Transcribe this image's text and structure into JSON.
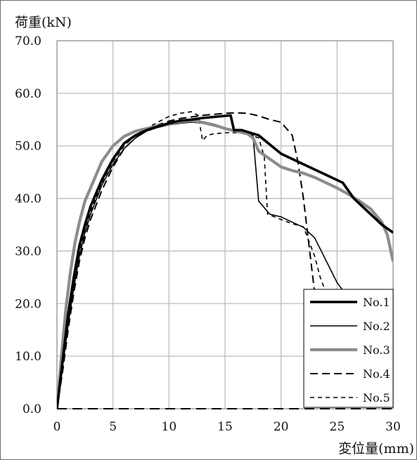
{
  "chart_data": {
    "type": "line",
    "ylabel": "荷重(kN)",
    "xlabel": "変位量(mm)",
    "xlim": [
      0,
      30
    ],
    "ylim": [
      0,
      70
    ],
    "x_ticks": [
      "0",
      "5",
      "10",
      "15",
      "20",
      "25",
      "30"
    ],
    "y_ticks": [
      "0.0",
      "10.0",
      "20.0",
      "30.0",
      "40.0",
      "50.0",
      "60.0",
      "70.0"
    ],
    "grid": true,
    "legend_position": "bottom-right",
    "series": [
      {
        "name": "No.1",
        "color": "#000000",
        "style": "solid-thick",
        "points": [
          [
            0,
            0
          ],
          [
            0.5,
            9
          ],
          [
            1,
            18
          ],
          [
            1.5,
            25
          ],
          [
            2,
            31
          ],
          [
            2.5,
            35
          ],
          [
            3,
            38.5
          ],
          [
            4,
            43.5
          ],
          [
            5,
            47.5
          ],
          [
            6,
            50.5
          ],
          [
            7,
            52
          ],
          [
            8,
            53
          ],
          [
            9,
            53.7
          ],
          [
            10,
            54.3
          ],
          [
            11,
            54.8
          ],
          [
            12,
            55
          ],
          [
            13,
            55.3
          ],
          [
            14,
            55.5
          ],
          [
            15,
            55.7
          ],
          [
            15.5,
            55.8
          ],
          [
            15.8,
            53
          ],
          [
            16.5,
            53
          ],
          [
            18,
            52
          ],
          [
            20,
            48.5
          ],
          [
            22,
            46.5
          ],
          [
            24,
            44.5
          ],
          [
            25.5,
            43
          ],
          [
            26.5,
            40
          ],
          [
            28,
            37
          ],
          [
            29,
            35
          ],
          [
            30,
            33.5
          ]
        ]
      },
      {
        "name": "No.2",
        "color": "#000000",
        "style": "solid-thin",
        "points": [
          [
            0,
            0
          ],
          [
            0.5,
            8
          ],
          [
            1,
            16
          ],
          [
            1.5,
            23
          ],
          [
            2,
            29
          ],
          [
            2.5,
            33.5
          ],
          [
            3,
            37
          ],
          [
            4,
            42.5
          ],
          [
            5,
            46.5
          ],
          [
            6,
            49.5
          ],
          [
            7,
            51.5
          ],
          [
            8,
            52.8
          ],
          [
            9,
            53.5
          ],
          [
            10,
            54
          ],
          [
            11,
            54.3
          ],
          [
            12,
            54.5
          ],
          [
            13,
            54.3
          ],
          [
            14,
            53.8
          ],
          [
            15,
            53.2
          ],
          [
            16,
            52.8
          ],
          [
            17,
            52.3
          ],
          [
            17.5,
            52
          ],
          [
            18,
            39.5
          ],
          [
            19,
            37
          ],
          [
            20,
            36.5
          ],
          [
            21,
            35.5
          ],
          [
            22,
            34.5
          ],
          [
            23,
            32.5
          ],
          [
            25,
            24
          ],
          [
            26.2,
            20.5
          ]
        ]
      },
      {
        "name": "No.3",
        "color": "#8c8c8c",
        "style": "solid-thick",
        "points": [
          [
            0,
            0
          ],
          [
            0.4,
            10
          ],
          [
            0.8,
            19
          ],
          [
            1.2,
            26
          ],
          [
            1.6,
            31.5
          ],
          [
            2,
            35.5
          ],
          [
            2.5,
            39.5
          ],
          [
            3,
            42
          ],
          [
            4,
            47
          ],
          [
            5,
            50
          ],
          [
            6,
            51.8
          ],
          [
            7,
            52.8
          ],
          [
            8,
            53.3
          ],
          [
            9,
            53.8
          ],
          [
            10,
            54.2
          ],
          [
            11,
            54.6
          ],
          [
            12,
            54.8
          ],
          [
            13,
            54.5
          ],
          [
            14,
            54
          ],
          [
            15,
            53.3
          ],
          [
            16,
            52.8
          ],
          [
            17,
            52.3
          ],
          [
            17.5,
            51.5
          ],
          [
            18,
            49
          ],
          [
            19,
            47.5
          ],
          [
            20,
            46
          ],
          [
            21,
            45.3
          ],
          [
            22,
            44.8
          ],
          [
            23,
            44
          ],
          [
            24,
            43
          ],
          [
            25,
            42
          ],
          [
            26,
            40.8
          ],
          [
            27,
            39.5
          ],
          [
            28,
            38
          ],
          [
            29,
            35.5
          ],
          [
            29.5,
            33
          ],
          [
            30,
            28
          ]
        ]
      },
      {
        "name": "No.4",
        "color": "#000000",
        "style": "dashed-long",
        "points": [
          [
            0,
            0
          ],
          [
            0.5,
            7
          ],
          [
            1,
            15
          ],
          [
            1.5,
            22
          ],
          [
            2,
            28
          ],
          [
            2.5,
            32.5
          ],
          [
            3,
            36
          ],
          [
            4,
            41.5
          ],
          [
            5,
            46
          ],
          [
            6,
            49.5
          ],
          [
            7,
            51.5
          ],
          [
            8,
            53
          ],
          [
            9,
            54
          ],
          [
            10,
            54.7
          ],
          [
            11,
            55.2
          ],
          [
            12,
            55.5
          ],
          [
            13,
            55.8
          ],
          [
            14,
            56
          ],
          [
            15,
            56.2
          ],
          [
            16,
            56.3
          ],
          [
            17,
            56.2
          ],
          [
            18,
            55.7
          ],
          [
            19,
            55
          ],
          [
            20,
            54.5
          ],
          [
            21,
            52
          ],
          [
            21.5,
            47
          ],
          [
            22,
            40
          ],
          [
            22.5,
            31
          ],
          [
            23,
            22
          ]
        ]
      },
      {
        "name": "No.5",
        "color": "#000000",
        "style": "dashed-short",
        "points": [
          [
            0,
            0
          ],
          [
            0.5,
            8
          ],
          [
            1,
            16
          ],
          [
            1.5,
            23.5
          ],
          [
            2,
            29.5
          ],
          [
            2.5,
            34
          ],
          [
            3,
            37.5
          ],
          [
            4,
            43
          ],
          [
            5,
            47
          ],
          [
            6,
            50
          ],
          [
            7,
            52
          ],
          [
            8,
            53.3
          ],
          [
            9,
            54.5
          ],
          [
            10,
            55.6
          ],
          [
            11,
            56.2
          ],
          [
            12,
            56.5
          ],
          [
            12.6,
            55.8
          ],
          [
            13,
            51
          ],
          [
            13.4,
            52
          ],
          [
            14,
            52.3
          ],
          [
            15,
            52.5
          ],
          [
            16,
            52.5
          ],
          [
            17,
            52.3
          ],
          [
            18,
            51.5
          ],
          [
            18.5,
            48
          ],
          [
            18.8,
            37
          ],
          [
            20,
            36
          ],
          [
            21,
            35.2
          ],
          [
            22,
            34.6
          ],
          [
            23,
            29
          ],
          [
            23.5,
            25
          ],
          [
            24.2,
            21
          ]
        ]
      }
    ]
  }
}
